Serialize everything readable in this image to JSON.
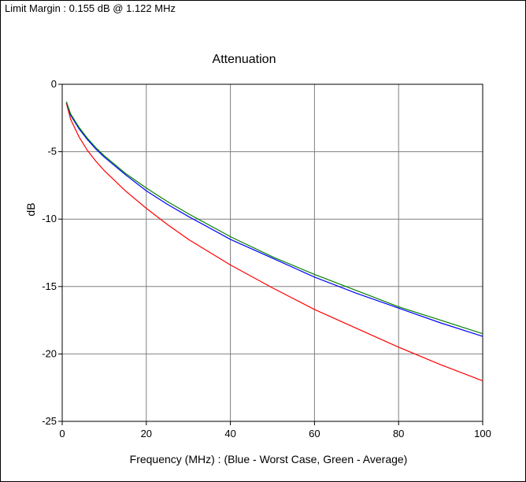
{
  "header": {
    "limit_margin": "Limit Margin : 0.155 dB @ 1.122 MHz"
  },
  "chart_data": {
    "type": "line",
    "title": "Attenuation",
    "xlabel": "Frequency (MHz) : (Blue - Worst Case, Green - Average)",
    "ylabel": "dB",
    "xlim": [
      0,
      100
    ],
    "ylim": [
      -25,
      0
    ],
    "xticks": [
      0,
      20,
      40,
      60,
      80,
      100
    ],
    "yticks": [
      0,
      -5,
      -10,
      -15,
      -20,
      -25
    ],
    "grid": true,
    "x": [
      1,
      2,
      4,
      6,
      8,
      10,
      15,
      20,
      25,
      30,
      40,
      50,
      60,
      70,
      80,
      90,
      100
    ],
    "series": [
      {
        "color": "#ff0000",
        "values": [
          -1.4,
          -2.6,
          -3.9,
          -4.9,
          -5.7,
          -6.4,
          -7.9,
          -9.2,
          -10.4,
          -11.5,
          -13.4,
          -15.1,
          -16.7,
          -18.1,
          -19.5,
          -20.8,
          -22.0
        ]
      },
      {
        "color": "#0000ff",
        "values": [
          -1.3,
          -2.3,
          -3.3,
          -4.1,
          -4.8,
          -5.4,
          -6.7,
          -7.9,
          -8.9,
          -9.8,
          -11.5,
          -12.9,
          -14.3,
          -15.5,
          -16.6,
          -17.7,
          -18.7
        ]
      },
      {
        "color": "#008000",
        "values": [
          -1.3,
          -2.2,
          -3.2,
          -4.0,
          -4.7,
          -5.3,
          -6.6,
          -7.7,
          -8.7,
          -9.6,
          -11.3,
          -12.8,
          -14.1,
          -15.3,
          -16.5,
          -17.5,
          -18.5
        ]
      }
    ]
  }
}
